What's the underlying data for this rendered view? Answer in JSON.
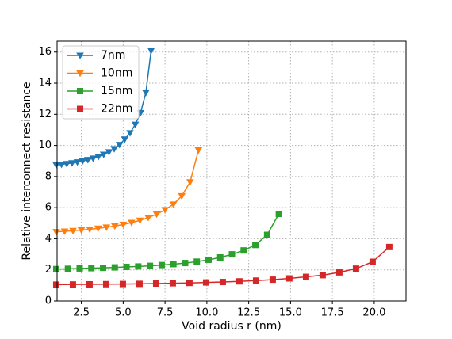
{
  "chart_data": {
    "type": "line",
    "xlabel": "Void radius r (nm)",
    "ylabel": "Relative interconnect resistance",
    "xlim": [
      1.05,
      21.9
    ],
    "ylim": [
      0,
      16.7
    ],
    "xticks": [
      {
        "value": 2.5,
        "label": "2.5"
      },
      {
        "value": 5,
        "label": "5.0"
      },
      {
        "value": 7.5,
        "label": "7.5"
      },
      {
        "value": 10,
        "label": "10.0"
      },
      {
        "value": 12.5,
        "label": "12.5"
      },
      {
        "value": 15,
        "label": "15.0"
      },
      {
        "value": 17.5,
        "label": "17.5"
      },
      {
        "value": 20,
        "label": "20.0"
      }
    ],
    "yticks": [
      0,
      2,
      4,
      6,
      8,
      10,
      12,
      14,
      16
    ],
    "grid": true,
    "legend": "upper left",
    "series": [
      {
        "name": "7nm",
        "color": "#1f77b4",
        "marker": "v",
        "x": [
          1,
          1.315,
          1.63,
          1.945,
          2.26,
          2.575,
          2.89,
          3.205,
          3.52,
          3.835,
          4.15,
          4.465,
          4.78,
          5.095,
          5.41,
          5.725,
          6.04,
          6.355,
          6.67
        ],
        "values": [
          8.75,
          8.78,
          8.82,
          8.87,
          8.93,
          9.0,
          9.08,
          9.17,
          9.28,
          9.42,
          9.58,
          9.78,
          10.05,
          10.4,
          10.8,
          11.35,
          12.1,
          13.4,
          16.1
        ]
      },
      {
        "name": "10nm",
        "color": "#ff7f0e",
        "marker": "v",
        "x": [
          1,
          1.5,
          2,
          2.5,
          3,
          3.5,
          4,
          4.5,
          5,
          5.5,
          6,
          6.5,
          7,
          7.5,
          8,
          8.5,
          9,
          9.5
        ],
        "values": [
          4.45,
          4.48,
          4.52,
          4.56,
          4.61,
          4.67,
          4.74,
          4.82,
          4.92,
          5.04,
          5.18,
          5.36,
          5.58,
          5.86,
          6.22,
          6.75,
          7.65,
          9.7
        ]
      },
      {
        "name": "15nm",
        "color": "#2ca02c",
        "marker": "s",
        "x": [
          1,
          1.7,
          2.4,
          3.1,
          3.8,
          4.5,
          5.2,
          5.9,
          6.6,
          7.3,
          8,
          8.7,
          9.4,
          10.1,
          10.8,
          11.5,
          12.2,
          12.9,
          13.6,
          14.3
        ],
        "values": [
          2.05,
          2.07,
          2.09,
          2.11,
          2.13,
          2.16,
          2.19,
          2.22,
          2.26,
          2.31,
          2.37,
          2.44,
          2.53,
          2.65,
          2.8,
          3.0,
          3.25,
          3.6,
          4.25,
          5.6
        ]
      },
      {
        "name": "22nm",
        "color": "#d62728",
        "marker": "s",
        "x": [
          1,
          1.995,
          2.99,
          3.985,
          4.98,
          5.975,
          6.97,
          7.965,
          8.96,
          9.955,
          10.95,
          11.945,
          12.94,
          13.935,
          14.93,
          15.925,
          16.92,
          17.915,
          18.91,
          19.905,
          20.9
        ],
        "values": [
          1.05,
          1.06,
          1.07,
          1.08,
          1.09,
          1.1,
          1.12,
          1.14,
          1.16,
          1.19,
          1.22,
          1.26,
          1.31,
          1.37,
          1.45,
          1.55,
          1.66,
          1.84,
          2.08,
          2.52,
          3.47
        ]
      }
    ]
  }
}
